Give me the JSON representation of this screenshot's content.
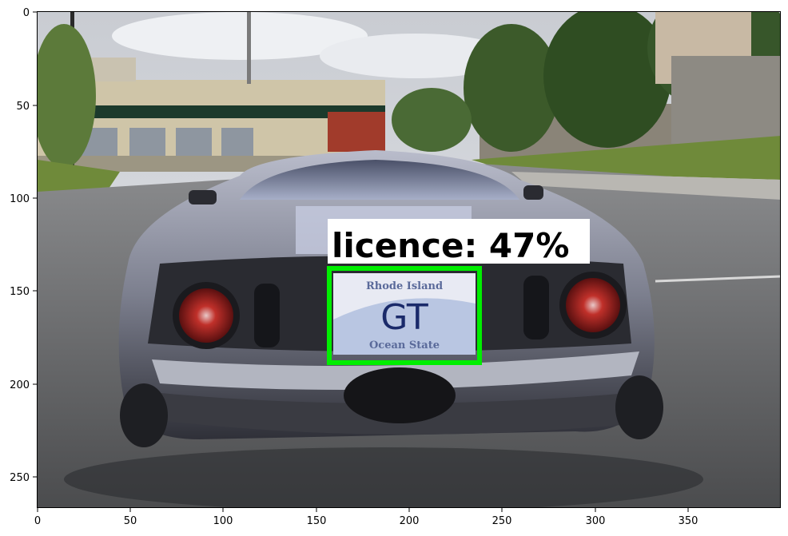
{
  "axes": {
    "x_ticks": [
      "0",
      "50",
      "100",
      "150",
      "200",
      "250",
      "300",
      "350"
    ],
    "y_ticks": [
      "0",
      "50",
      "100",
      "150",
      "200",
      "250"
    ]
  },
  "detection": {
    "label": "licence: 47%",
    "box_color": "#00ee00"
  },
  "plate": {
    "state": "Rhode Island",
    "number": "GT",
    "slogan": "Ocean State"
  }
}
